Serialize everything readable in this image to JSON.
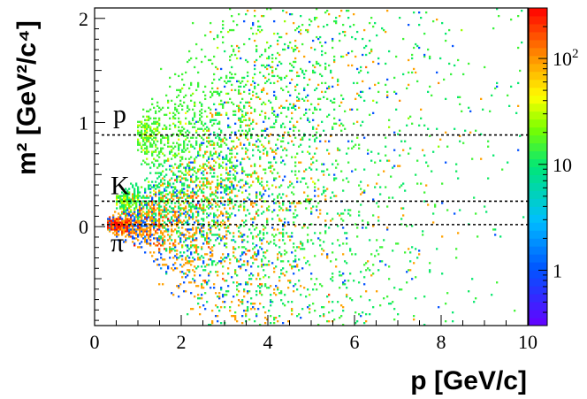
{
  "chart_data": {
    "type": "heatmap",
    "xlabel": "p [GeV/c]",
    "ylabel": "m² [GeV²/c⁴]",
    "xlim": [
      0,
      10
    ],
    "ylim": [
      -0.95,
      2.1
    ],
    "x_ticks": [
      "0",
      "2",
      "4",
      "6",
      "8",
      "10"
    ],
    "y_ticks": [
      "0",
      "1",
      "2"
    ],
    "colorbar": {
      "scale": "log",
      "range": [
        0.3,
        300
      ],
      "tick_labels": [
        {
          "value": 1,
          "label": "1"
        },
        {
          "value": 10,
          "label": "10"
        },
        {
          "value": 100,
          "label": "10",
          "sup": "2"
        }
      ]
    },
    "reference_lines": [
      {
        "label": "p",
        "m2": 0.88
      },
      {
        "label": "K",
        "m2": 0.244
      },
      {
        "label": "π",
        "m2": 0.0195
      }
    ],
    "bands": [
      {
        "name": "proton",
        "m2": 0.88,
        "p_start": 1.0,
        "peak_counts": 15
      },
      {
        "name": "kaon",
        "m2": 0.244,
        "p_start": 0.5,
        "peak_counts": 8
      },
      {
        "name": "pion",
        "m2": 0.0195,
        "p_start": 0.3,
        "peak_counts": 250
      }
    ]
  }
}
